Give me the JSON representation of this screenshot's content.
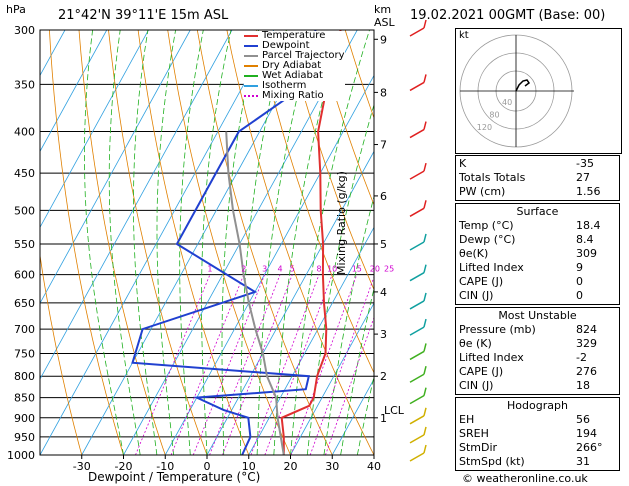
{
  "header": {
    "hpa": "hPa",
    "location": "21°42'N  39°11'E  15m  ASL",
    "km": "km",
    "asl": "ASL",
    "datetime": "19.02.2021  00GMT  (Base: 00)"
  },
  "legend": [
    {
      "label": "Temperature",
      "color": "#e03030"
    },
    {
      "label": "Dewpoint",
      "color": "#2040d0"
    },
    {
      "label": "Parcel Trajectory",
      "color": "#909090"
    },
    {
      "label": "Dry Adiabat",
      "color": "#e08000"
    },
    {
      "label": "Wet Adiabat",
      "color": "#20b020"
    },
    {
      "label": "Isotherm",
      "color": "#30a0e0"
    },
    {
      "label": "Mixing Ratio",
      "color": "#d000d0"
    }
  ],
  "chart_data": {
    "type": "line",
    "xlabel": "Dewpoint / Temperature (°C)",
    "ylabel": "hPa",
    "y2label": "Mixing Ratio (g/kg)",
    "xlim": [
      -40,
      40
    ],
    "ylim": [
      1000,
      300
    ],
    "x_ticks": [
      "-30",
      "-20",
      "-10",
      "0",
      "10",
      "20",
      "30",
      "40"
    ],
    "pressure_ticks": [
      "300",
      "350",
      "400",
      "450",
      "500",
      "550",
      "600",
      "650",
      "700",
      "750",
      "800",
      "850",
      "900",
      "950",
      "1000"
    ],
    "km_ticks": [
      {
        "km": "9",
        "p": 308
      },
      {
        "km": "8",
        "p": 358
      },
      {
        "km": "7",
        "p": 415
      },
      {
        "km": "6",
        "p": 480
      },
      {
        "km": "5",
        "p": 550
      },
      {
        "km": "4",
        "p": 630
      },
      {
        "km": "3",
        "p": 710
      },
      {
        "km": "2",
        "p": 800
      },
      {
        "km": "1",
        "p": 900
      }
    ],
    "lcl": {
      "label": "LCL",
      "p": 880
    },
    "mixing_ratio_labels": [
      "1",
      "2",
      "3",
      "4",
      "5",
      "8",
      "10",
      "15",
      "20",
      "25"
    ],
    "series": [
      {
        "name": "Temperature",
        "points": [
          [
            18.4,
            1000
          ],
          [
            16,
            950
          ],
          [
            13,
            900
          ],
          [
            18,
            870
          ],
          [
            18,
            850
          ],
          [
            16,
            800
          ],
          [
            15,
            750
          ],
          [
            12,
            700
          ],
          [
            8,
            650
          ],
          [
            4,
            600
          ],
          [
            0,
            550
          ],
          [
            -5,
            500
          ],
          [
            -10,
            450
          ],
          [
            -16,
            400
          ],
          [
            -20,
            350
          ],
          [
            -24,
            300
          ]
        ]
      },
      {
        "name": "Dewpoint",
        "points": [
          [
            8.4,
            1000
          ],
          [
            8,
            950
          ],
          [
            5,
            900
          ],
          [
            -2,
            880
          ],
          [
            -10,
            850
          ],
          [
            15,
            830
          ],
          [
            14,
            800
          ],
          [
            -30,
            770
          ],
          [
            -32,
            700
          ],
          [
            -10,
            630
          ],
          [
            -35,
            550
          ],
          [
            -35,
            450
          ],
          [
            -35,
            400
          ],
          [
            -25,
            350
          ],
          [
            -30,
            300
          ]
        ]
      },
      {
        "name": "Parcel Trajectory",
        "points": [
          [
            18.4,
            1000
          ],
          [
            12,
            900
          ],
          [
            9,
            850
          ],
          [
            4,
            800
          ],
          [
            0,
            750
          ],
          [
            -5,
            700
          ],
          [
            -10,
            650
          ],
          [
            -15,
            600
          ],
          [
            -20,
            550
          ],
          [
            -26,
            500
          ],
          [
            -32,
            450
          ],
          [
            -38,
            400
          ]
        ]
      }
    ]
  },
  "hodograph": {
    "unit": "kt",
    "ring_labels": [
      "40",
      "80",
      "120"
    ]
  },
  "indices": {
    "top": [
      {
        "label": "K",
        "value": "-35"
      },
      {
        "label": "Totals Totals",
        "value": "27"
      },
      {
        "label": "PW (cm)",
        "value": "1.56"
      }
    ],
    "surface": {
      "title": "Surface",
      "rows": [
        {
          "label": "Temp (°C)",
          "value": "18.4"
        },
        {
          "label": "Dewp (°C)",
          "value": "8.4"
        },
        {
          "label": "θe(K)",
          "value": "309"
        },
        {
          "label": "Lifted Index",
          "value": "9"
        },
        {
          "label": "CAPE (J)",
          "value": "0"
        },
        {
          "label": "CIN (J)",
          "value": "0"
        }
      ]
    },
    "most_unstable": {
      "title": "Most Unstable",
      "rows": [
        {
          "label": "Pressure (mb)",
          "value": "824"
        },
        {
          "label": "θe (K)",
          "value": "329"
        },
        {
          "label": "Lifted Index",
          "value": "-2"
        },
        {
          "label": "CAPE (J)",
          "value": "276"
        },
        {
          "label": "CIN (J)",
          "value": "18"
        }
      ]
    },
    "hodograph": {
      "title": "Hodograph",
      "rows": [
        {
          "label": "EH",
          "value": "56"
        },
        {
          "label": "SREH",
          "value": "194"
        },
        {
          "label": "StmDir",
          "value": "266°"
        },
        {
          "label": "StmSpd (kt)",
          "value": "31"
        }
      ]
    }
  },
  "footer": {
    "credit": "© weatheronline.co.uk"
  }
}
